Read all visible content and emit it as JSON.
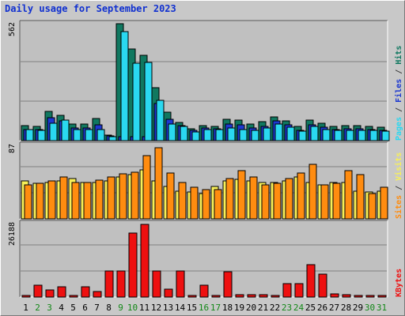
{
  "title": "Daily usage for September 2023",
  "colors": {
    "hits": "#107860",
    "files": "#1c38d0",
    "pages": "#2ad8f0",
    "visits": "#f8f058",
    "sites": "#ff8c10",
    "kbytes": "#ee1010",
    "weekend_day": "#138818",
    "plot_bg": "#c0c0c0",
    "grid": "#808080"
  },
  "chart_data": [
    {
      "type": "bar",
      "panel": "hits-files-pages",
      "max_label": "562",
      "ylim": [
        0,
        562
      ],
      "right_labels": [
        "Pages",
        "/",
        "Files",
        "/",
        "Hits"
      ],
      "categories": [
        "1",
        "2",
        "3",
        "4",
        "5",
        "6",
        "7",
        "8",
        "9",
        "10",
        "11",
        "12",
        "13",
        "14",
        "15",
        "16",
        "17",
        "18",
        "19",
        "20",
        "21",
        "22",
        "23",
        "24",
        "25",
        "26",
        "27",
        "28",
        "29",
        "30",
        "31"
      ],
      "weekend_days": [
        2,
        3,
        9,
        10,
        16,
        17,
        23,
        24,
        30,
        31
      ],
      "series": [
        {
          "name": "Hits",
          "values": [
            72,
            68,
            140,
            122,
            78,
            78,
            108,
            28,
            562,
            442,
            412,
            255,
            135,
            88,
            58,
            72,
            70,
            102,
            100,
            80,
            92,
            115,
            95,
            68,
            98,
            85,
            68,
            72,
            72,
            68,
            65
          ]
        },
        {
          "name": "Files",
          "values": [
            55,
            55,
            110,
            95,
            62,
            62,
            75,
            22,
            20,
            20,
            20,
            180,
            102,
            72,
            48,
            62,
            58,
            80,
            75,
            62,
            70,
            95,
            75,
            50,
            75,
            65,
            55,
            58,
            58,
            52,
            50
          ]
        },
        {
          "name": "Pages",
          "values": [
            55,
            48,
            82,
            98,
            52,
            52,
            55,
            18,
            525,
            372,
            375,
            195,
            80,
            70,
            42,
            55,
            52,
            62,
            52,
            50,
            60,
            78,
            65,
            45,
            70,
            55,
            50,
            50,
            50,
            48,
            45
          ]
        }
      ]
    },
    {
      "type": "bar",
      "panel": "visits-sites",
      "max_label": "87",
      "ylim": [
        0,
        87
      ],
      "right_labels": [
        "Sites",
        "/",
        "Visits"
      ],
      "categories": [
        "1",
        "2",
        "3",
        "4",
        "5",
        "6",
        "7",
        "8",
        "9",
        "10",
        "11",
        "12",
        "13",
        "14",
        "15",
        "16",
        "17",
        "18",
        "19",
        "20",
        "21",
        "22",
        "23",
        "24",
        "25",
        "26",
        "27",
        "28",
        "29",
        "30",
        "31"
      ],
      "series": [
        {
          "name": "Visits",
          "values": [
            45,
            42,
            43,
            45,
            48,
            43,
            43,
            45,
            50,
            52,
            58,
            45,
            38,
            33,
            32,
            30,
            38,
            45,
            47,
            45,
            43,
            43,
            45,
            50,
            43,
            40,
            43,
            43,
            33,
            32,
            33
          ]
        },
        {
          "name": "Sites",
          "values": [
            40,
            42,
            45,
            50,
            43,
            43,
            46,
            50,
            53,
            55,
            75,
            84,
            54,
            43,
            37,
            35,
            35,
            48,
            57,
            50,
            40,
            42,
            48,
            54,
            65,
            40,
            42,
            57,
            52,
            30,
            37
          ]
        }
      ]
    },
    {
      "type": "bar",
      "panel": "kbytes",
      "max_label": "26188",
      "ylim": [
        0,
        26188
      ],
      "right_labels": [
        "KBytes"
      ],
      "categories": [
        "1",
        "2",
        "3",
        "4",
        "5",
        "6",
        "7",
        "8",
        "9",
        "10",
        "11",
        "12",
        "13",
        "14",
        "15",
        "16",
        "17",
        "18",
        "19",
        "20",
        "21",
        "22",
        "23",
        "24",
        "25",
        "26",
        "27",
        "28",
        "29",
        "30",
        "31"
      ],
      "series": [
        {
          "name": "KBytes",
          "values": [
            500,
            4200,
            2600,
            3800,
            500,
            3800,
            2000,
            9300,
            9300,
            22800,
            25800,
            9300,
            2900,
            9300,
            500,
            4200,
            500,
            9000,
            800,
            800,
            800,
            500,
            4900,
            4900,
            11600,
            8200,
            1000,
            800,
            500,
            500,
            500
          ]
        }
      ]
    }
  ]
}
